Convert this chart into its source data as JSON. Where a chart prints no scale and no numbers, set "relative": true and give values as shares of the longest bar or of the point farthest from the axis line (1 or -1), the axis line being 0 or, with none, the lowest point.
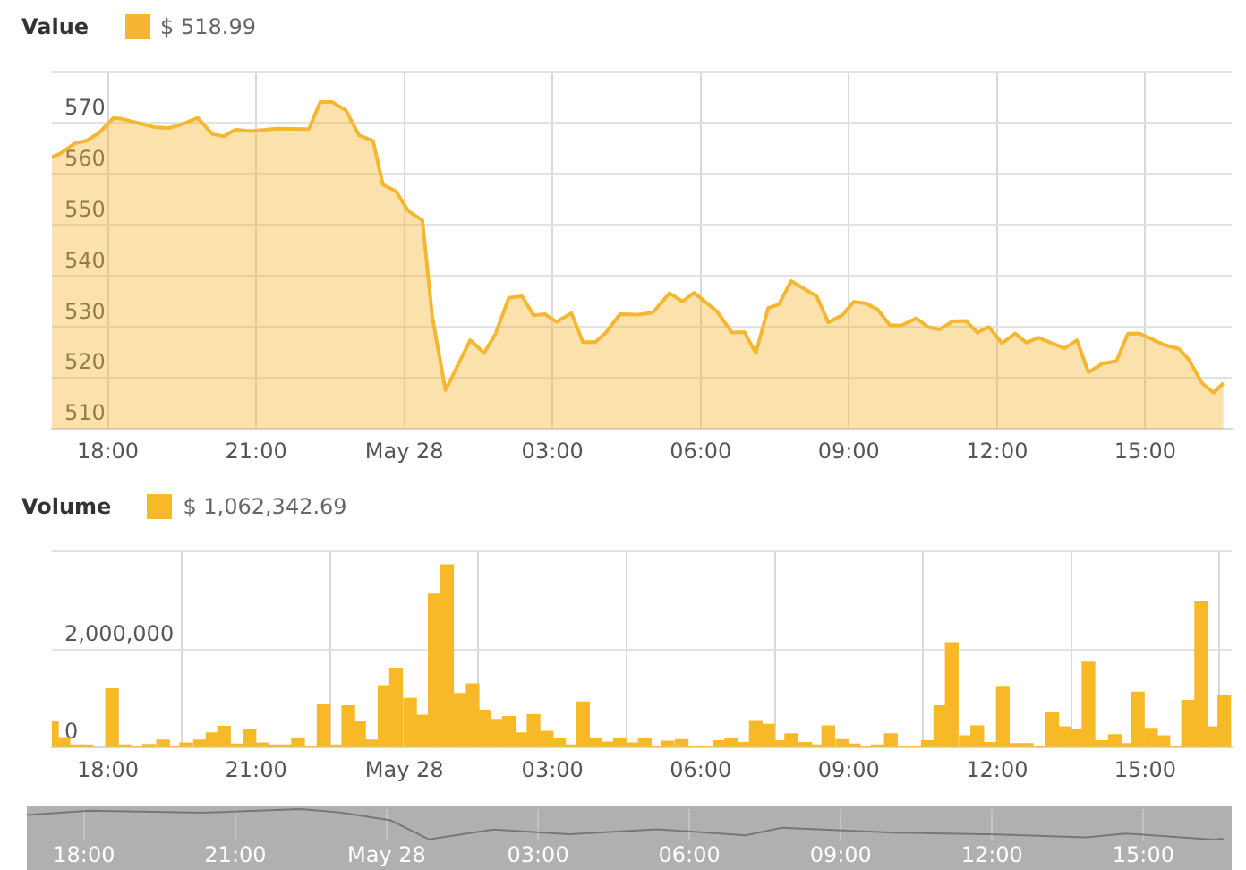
{
  "chart_data": [
    {
      "type": "area",
      "legend": "top left",
      "grid": true,
      "annotations": [
        "$ 518.99"
      ],
      "xlim": [
        "--05-27T16:52",
        "--05-28T16:45"
      ],
      "xticks": [
        {
          "value": "--05-27T18:00",
          "label": "18:00"
        },
        {
          "value": "--05-27T21:00",
          "label": "21:00"
        },
        {
          "value": "--05-28T00:00",
          "label": "May 28"
        },
        {
          "value": "--05-28T03:00",
          "label": "03:00"
        },
        {
          "value": "--05-28T06:00",
          "label": "06:00"
        },
        {
          "value": "--05-28T09:00",
          "label": "09:00"
        },
        {
          "value": "--05-28T12:00",
          "label": "12:00"
        },
        {
          "value": "--05-28T15:00",
          "label": "15:00"
        }
      ],
      "ylim": [
        510,
        580
      ],
      "yticks": [
        510,
        520,
        530,
        540,
        550,
        560,
        570,
        {
          "value": 580,
          "label": null
        }
      ],
      "series": [
        {
          "name": "Value",
          "color": "#f5b731",
          "x": [
            "--05-27T16:52",
            "--05-27T17:02",
            "--05-27T17:20",
            "--05-27T17:34",
            "--05-27T17:49",
            "--05-27T18:07",
            "--05-27T18:17",
            "--05-27T18:56",
            "--05-27T19:14",
            "--05-27T19:31",
            "--05-27T19:49",
            "--05-27T20:07",
            "--05-27T20:21",
            "--05-27T20:35",
            "--05-27T20:53",
            "--05-27T21:25",
            "--05-27T22:04",
            "--05-27T22:18",
            "--05-27T22:32",
            "--05-27T22:49",
            "--05-27T23:05",
            "--05-27T23:22",
            "--05-27T23:34",
            "--05-27T23:50",
            "--05-28T00:05",
            "--05-28T00:22",
            "--05-28T00:34",
            "--05-28T00:50",
            "--05-28T01:20",
            "--05-28T01:37",
            "--05-28T01:51",
            "--05-28T02:07",
            "--05-28T02:23",
            "--05-28T02:37",
            "--05-28T02:51",
            "--05-28T03:05",
            "--05-28T03:23",
            "--05-28T03:37",
            "--05-28T03:52",
            "--05-28T04:05",
            "--05-28T04:22",
            "--05-28T04:44",
            "--05-28T05:02",
            "--05-28T05:22",
            "--05-28T05:38",
            "--05-28T05:52",
            "--05-28T06:20",
            "--05-28T06:38",
            "--05-28T06:53",
            "--05-28T07:07",
            "--05-28T07:22",
            "--05-28T07:35",
            "--05-28T07:50",
            "--05-28T08:21",
            "--05-28T08:35",
            "--05-28T08:52",
            "--05-28T09:06",
            "--05-28T09:21",
            "--05-28T09:35",
            "--05-28T09:50",
            "--05-28T10:04",
            "--05-28T10:22",
            "--05-28T10:36",
            "--05-28T10:50",
            "--05-28T11:06",
            "--05-28T11:22",
            "--05-28T11:36",
            "--05-28T11:50",
            "--05-28T12:06",
            "--05-28T12:22",
            "--05-28T12:36",
            "--05-28T12:50",
            "--05-28T13:22",
            "--05-28T13:37",
            "--05-28T13:51",
            "--05-28T14:08",
            "--05-28T14:25",
            "--05-28T14:39",
            "--05-28T14:53",
            "--05-28T15:23",
            "--05-28T15:41",
            "--05-28T15:52",
            "--05-28T16:09",
            "--05-28T16:23",
            "--05-28T16:35"
          ],
          "values": [
            563.3,
            564,
            566,
            566.5,
            568,
            571,
            570.8,
            569.2,
            569,
            569.8,
            571,
            567.8,
            567.4,
            568.7,
            568.4,
            568.9,
            568.8,
            574.1,
            574.1,
            572.5,
            567.6,
            566.5,
            557.9,
            556.6,
            552.7,
            550.9,
            532,
            517.6,
            527.4,
            524.9,
            528.7,
            535.7,
            536,
            532.3,
            532.5,
            531,
            532.7,
            527,
            527,
            528.9,
            532.5,
            532.4,
            532.8,
            536.6,
            535,
            536.7,
            533,
            528.9,
            529,
            524.9,
            533.7,
            534.4,
            539,
            536,
            530.9,
            532.3,
            534.9,
            534.6,
            533.4,
            530.3,
            530.3,
            531.7,
            530,
            529.5,
            531.1,
            531.2,
            528.9,
            530,
            526.8,
            528.7,
            526.9,
            527.9,
            525.8,
            527.4,
            521.1,
            522.8,
            523.3,
            528.7,
            528.7,
            526.5,
            525.7,
            523.8,
            519,
            517.1,
            519
          ]
        }
      ]
    },
    {
      "type": "bar",
      "legend": "top left",
      "grid": true,
      "annotations": [
        "$ 1,062,342.69"
      ],
      "xlim": [
        "--05-27T16:52",
        "--05-28T16:45"
      ],
      "xticks": [
        {
          "value": "--05-27T18:00",
          "label": "18:00"
        },
        {
          "value": "--05-27T21:00",
          "label": "21:00"
        },
        {
          "value": "--05-28T00:00",
          "label": "May 28"
        },
        {
          "value": "--05-28T03:00",
          "label": "03:00"
        },
        {
          "value": "--05-28T06:00",
          "label": "06:00"
        },
        {
          "value": "--05-28T09:00",
          "label": "09:00"
        },
        {
          "value": "--05-28T12:00",
          "label": "12:00"
        },
        {
          "value": "--05-28T15:00",
          "label": "15:00"
        }
      ],
      "ylim": [
        0,
        4000000
      ],
      "yticks": [
        0,
        {
          "value": 2000000,
          "label": "2,000,000"
        },
        {
          "value": 4000000,
          "label": null
        }
      ],
      "series": [
        {
          "name": "Volume",
          "color": "#f7b928",
          "x": [
            "--05-27T16:52",
            "--05-27T17:06",
            "--05-27T17:20",
            "--05-27T17:34",
            "--05-27T18:05",
            "--05-27T18:20",
            "--05-27T18:35",
            "--05-27T18:50",
            "--05-27T19:07",
            "--05-27T19:21",
            "--05-27T19:35",
            "--05-27T19:52",
            "--05-27T20:07",
            "--05-27T20:21",
            "--05-27T20:37",
            "--05-27T20:52",
            "--05-27T21:07",
            "--05-27T21:22",
            "--05-27T21:37",
            "--05-27T21:51",
            "--05-27T22:08",
            "--05-27T22:22",
            "--05-27T22:36",
            "--05-27T22:52",
            "--05-27T23:05",
            "--05-27T23:20",
            "--05-27T23:36",
            "--05-27T23:50",
            "--05-28T00:07",
            "--05-28T00:22",
            "--05-28T00:37",
            "--05-28T00:52",
            "--05-28T01:07",
            "--05-28T01:23",
            "--05-28T01:37",
            "--05-28T01:53",
            "--05-28T02:07",
            "--05-28T02:23",
            "--05-28T02:37",
            "--05-28T02:53",
            "--05-28T03:08",
            "--05-28T03:23",
            "--05-28T03:37",
            "--05-28T03:52",
            "--05-28T04:07",
            "--05-28T04:22",
            "--05-28T04:38",
            "--05-28T04:52",
            "--05-28T05:08",
            "--05-28T05:20",
            "--05-28T05:37",
            "--05-28T05:52",
            "--05-28T06:07",
            "--05-28T06:23",
            "--05-28T06:37",
            "--05-28T06:51",
            "--05-28T07:07",
            "--05-28T07:22",
            "--05-28T07:37",
            "--05-28T07:50",
            "--05-28T08:07",
            "--05-28T08:21",
            "--05-28T08:35",
            "--05-28T08:52",
            "--05-28T09:06",
            "--05-28T09:20",
            "--05-28T09:35",
            "--05-28T09:51",
            "--05-28T10:05",
            "--05-28T10:22",
            "--05-28T10:36",
            "--05-28T10:51",
            "--05-28T11:05",
            "--05-28T11:22",
            "--05-28T11:36",
            "--05-28T11:52",
            "--05-28T12:07",
            "--05-28T12:22",
            "--05-28T12:36",
            "--05-28T12:53",
            "--05-28T13:07",
            "--05-28T13:22",
            "--05-28T13:37",
            "--05-28T13:51",
            "--05-28T14:07",
            "--05-28T14:23",
            "--05-28T14:37",
            "--05-28T14:51",
            "--05-28T15:07",
            "--05-28T15:22",
            "--05-28T15:37",
            "--05-28T15:52",
            "--05-28T16:08",
            "--05-28T16:21",
            "--05-28T16:36"
          ],
          "values": [
            540000,
            200000,
            50000,
            50000,
            1200000,
            50000,
            20000,
            60000,
            150000,
            20000,
            90000,
            150000,
            300000,
            430000,
            70000,
            370000,
            90000,
            50000,
            50000,
            190000,
            20000,
            880000,
            50000,
            850000,
            520000,
            150000,
            1260000,
            1620000,
            1000000,
            660000,
            3130000,
            3730000,
            1100000,
            1300000,
            760000,
            570000,
            630000,
            300000,
            670000,
            330000,
            190000,
            50000,
            930000,
            190000,
            110000,
            190000,
            90000,
            190000,
            30000,
            130000,
            160000,
            30000,
            30000,
            140000,
            190000,
            100000,
            550000,
            470000,
            140000,
            280000,
            100000,
            50000,
            440000,
            160000,
            70000,
            30000,
            50000,
            280000,
            30000,
            30000,
            140000,
            850000,
            2140000,
            240000,
            440000,
            100000,
            1250000,
            80000,
            80000,
            30000,
            710000,
            420000,
            360000,
            1740000,
            140000,
            260000,
            80000,
            1130000,
            390000,
            240000,
            30000,
            960000,
            2990000,
            420000,
            1060000
          ]
        }
      ]
    },
    {
      "type": "line",
      "relative": true,
      "grid": "x",
      "xlim": [
        "--05-27T16:52",
        "--05-28T16:45"
      ],
      "xticks": [
        {
          "value": "--05-27T18:00",
          "label": "18:00"
        },
        {
          "value": "--05-27T21:00",
          "label": "21:00"
        },
        {
          "value": "--05-28T00:00",
          "label": "May 28"
        },
        {
          "value": "--05-28T03:00",
          "label": "03:00"
        },
        {
          "value": "--05-28T06:00",
          "label": "06:00"
        },
        {
          "value": "--05-28T09:00",
          "label": "09:00"
        },
        {
          "value": "--05-28T12:00",
          "label": "12:00"
        },
        {
          "value": "--05-28T15:00",
          "label": "15:00"
        }
      ],
      "series": [
        {
          "color": "#777777",
          "x": [
            "--05-27T16:52",
            "--05-27T18:07",
            "--05-27T20:21",
            "--05-27T22:18",
            "--05-27T23:05",
            "--05-28T00:05",
            "--05-28T00:50",
            "--05-28T02:07",
            "--05-28T03:37",
            "--05-28T05:22",
            "--05-28T07:07",
            "--05-28T07:50",
            "--05-28T10:04",
            "--05-28T12:06",
            "--05-28T13:51",
            "--05-28T14:39",
            "--05-28T16:23",
            "--05-28T16:35"
          ],
          "values": [
            0.81,
            0.95,
            0.88,
            1,
            0.89,
            0.63,
            0.01,
            0.33,
            0.18,
            0.34,
            0.14,
            0.39,
            0.23,
            0.17,
            0.07,
            0.2,
            0,
            0.03
          ]
        }
      ]
    }
  ]
}
